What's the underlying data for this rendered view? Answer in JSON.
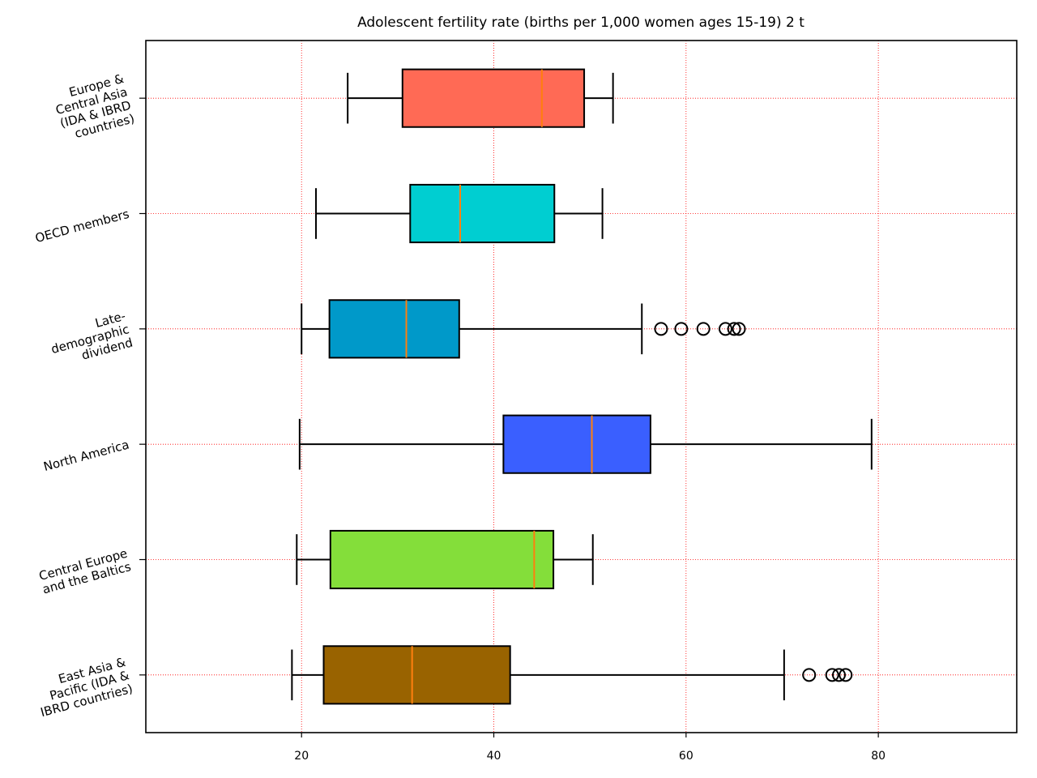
{
  "chart_data": {
    "type": "boxplot",
    "orientation": "horizontal",
    "title": "Adolescent fertility rate (births per 1,000 women ages 15-19) 2 t",
    "xlabel": "",
    "ylabel": "",
    "xlim": [
      3.8,
      94.4
    ],
    "x_ticks": [
      20,
      40,
      60,
      80
    ],
    "grid": true,
    "grid_color": "#ff0000",
    "categories": [
      "Europe & Central Asia (IDA & IBRD countries)",
      "OECD members",
      "Late-demographic dividend",
      "North America",
      "Central Europe and the Baltics",
      "East Asia & Pacific (IDA & IBRD countries)"
    ],
    "series": [
      {
        "label_lines": [
          "Europe &",
          "Central Asia",
          "(IDA & IBRD",
          "countries)"
        ],
        "color": "#ff6a55",
        "whisker_low": 24.8,
        "q1": 30.5,
        "median": 45.0,
        "q3": 49.4,
        "whisker_high": 52.4,
        "outliers": []
      },
      {
        "label_lines": [
          "OECD members"
        ],
        "color": "#00ced1",
        "whisker_low": 21.5,
        "q1": 31.3,
        "median": 36.5,
        "q3": 46.3,
        "whisker_high": 51.3,
        "outliers": []
      },
      {
        "label_lines": [
          "Late-",
          "demographic",
          "dividend"
        ],
        "color": "#0099c9",
        "whisker_low": 20.0,
        "q1": 22.9,
        "median": 30.9,
        "q3": 36.4,
        "whisker_high": 55.4,
        "outliers": [
          57.4,
          59.5,
          61.8,
          64.1,
          65.0,
          65.5
        ]
      },
      {
        "label_lines": [
          "North America"
        ],
        "color": "#3a5fff",
        "whisker_low": 19.8,
        "q1": 41.0,
        "median": 50.2,
        "q3": 56.3,
        "whisker_high": 79.3,
        "outliers": []
      },
      {
        "label_lines": [
          "Central Europe",
          "and the Baltics"
        ],
        "color": "#84de3a",
        "whisker_low": 19.5,
        "q1": 23.0,
        "median": 44.2,
        "q3": 46.2,
        "whisker_high": 50.3,
        "outliers": []
      },
      {
        "label_lines": [
          "East Asia &",
          "Pacific (IDA &",
          "IBRD countries)"
        ],
        "color": "#996300",
        "whisker_low": 19.0,
        "q1": 22.3,
        "median": 31.5,
        "q3": 41.7,
        "whisker_high": 70.2,
        "outliers": [
          72.8,
          75.2,
          75.9,
          76.6
        ]
      }
    ],
    "median_color": "#ff7f0e"
  }
}
